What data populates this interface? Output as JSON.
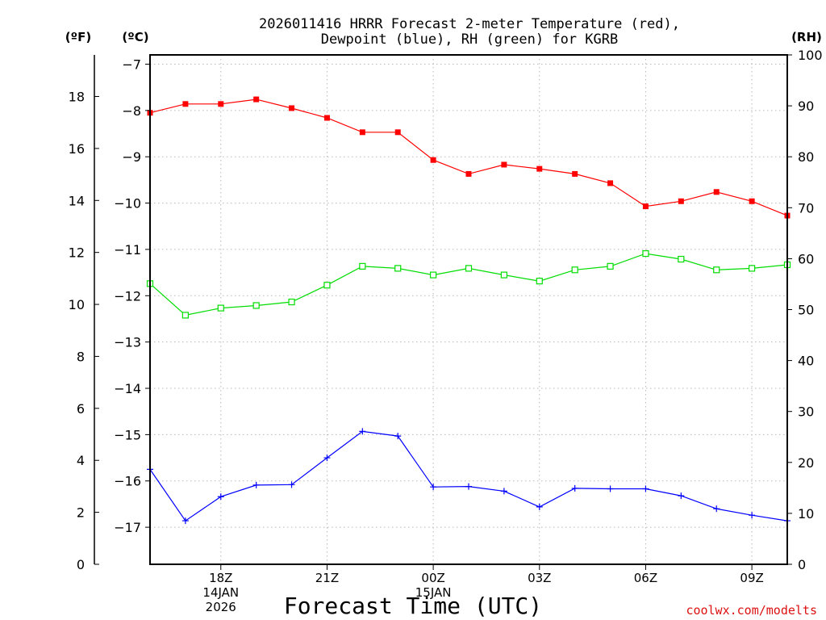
{
  "chart_data": {
    "type": "line",
    "title_line1": "2026011416 HRRR Forecast 2-meter Temperature (red),",
    "title_line2": "Dewpoint (blue), RH (green) for KGRB",
    "xlabel": "Forecast Time (UTC)",
    "unit_f": "(ºF)",
    "unit_c": "(ºC)",
    "unit_rh": "(RH)",
    "credit": "coolwx.com/modelts",
    "x_hours": [
      16,
      17,
      18,
      19,
      20,
      21,
      22,
      23,
      24,
      25,
      26,
      27,
      28,
      29,
      30,
      31,
      32,
      33,
      34
    ],
    "x_range": [
      16,
      34
    ],
    "x_ticks": [
      {
        "hour": 18,
        "lines": [
          "18Z",
          "14JAN",
          "2026"
        ]
      },
      {
        "hour": 21,
        "lines": [
          "21Z"
        ]
      },
      {
        "hour": 24,
        "lines": [
          "00Z",
          "15JAN"
        ]
      },
      {
        "hour": 27,
        "lines": [
          "03Z"
        ]
      },
      {
        "hour": 30,
        "lines": [
          "06Z"
        ]
      },
      {
        "hour": 33,
        "lines": [
          "09Z"
        ]
      }
    ],
    "ylim_c": [
      -17.8,
      -6.8
    ],
    "y_ticks_c": [
      "-7",
      "-8",
      "-9",
      "-10",
      "-11",
      "-12",
      "-13",
      "-14",
      "-15",
      "-16",
      "-17"
    ],
    "ylim_f": [
      0,
      19.6
    ],
    "y_ticks_f": [
      "0",
      "2",
      "4",
      "6",
      "8",
      "10",
      "12",
      "14",
      "16",
      "18"
    ],
    "ylim_rh": [
      0,
      100
    ],
    "y_ticks_rh": [
      "0",
      "10",
      "20",
      "30",
      "40",
      "50",
      "60",
      "70",
      "80",
      "90",
      "100"
    ],
    "series": [
      {
        "name": "2-meter Temperature",
        "color": "#ff0000",
        "marker": "filled-square",
        "axis": "c",
        "values": [
          -8.05,
          -7.86,
          -7.86,
          -7.76,
          -7.95,
          -8.16,
          -8.47,
          -8.47,
          -9.07,
          -9.37,
          -9.17,
          -9.26,
          -9.37,
          -9.57,
          -10.07,
          -9.96,
          -9.76,
          -9.96,
          -10.27
        ]
      },
      {
        "name": "Dewpoint",
        "color": "#0000ff",
        "marker": "plus",
        "axis": "c",
        "values": [
          -15.75,
          -16.86,
          -16.34,
          -16.09,
          -16.08,
          -15.5,
          -14.93,
          -15.03,
          -16.13,
          -16.12,
          -16.22,
          -16.56,
          -16.16,
          -16.17,
          -16.17,
          -16.32,
          -16.6,
          -16.74,
          -16.86
        ]
      },
      {
        "name": "RH",
        "color": "#00dd00",
        "marker": "open-square",
        "axis": "rh",
        "values": [
          55.1,
          48.9,
          50.3,
          50.8,
          51.5,
          54.8,
          58.5,
          58.1,
          56.8,
          58.1,
          56.8,
          55.6,
          57.8,
          58.5,
          61.0,
          59.9,
          57.8,
          58.1,
          58.8
        ]
      }
    ]
  }
}
